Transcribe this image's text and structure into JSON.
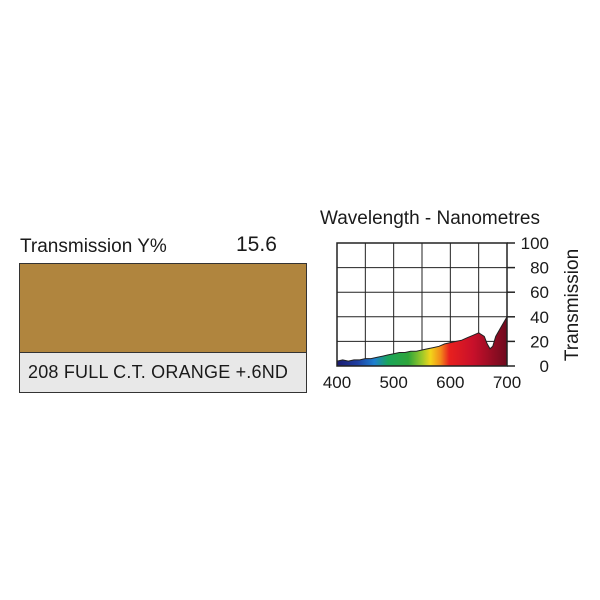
{
  "filter": {
    "transmission_label": "Transmission Y%",
    "transmission_value": "15.6",
    "swatch_color": "#b0853e",
    "name": "208 FULL C.T. ORANGE +.6ND"
  },
  "chart_data": {
    "type": "area",
    "title": "Wavelength - Nanometres",
    "ylabel": "Transmission",
    "xlim": [
      400,
      700
    ],
    "ylim": [
      0,
      100
    ],
    "x_ticks": [
      400,
      500,
      600,
      700
    ],
    "y_ticks": [
      0,
      20,
      40,
      60,
      80,
      100
    ],
    "grid": true,
    "fill": "visible-spectrum gradient",
    "x": [
      400,
      410,
      420,
      430,
      440,
      450,
      460,
      470,
      480,
      490,
      500,
      510,
      520,
      530,
      540,
      550,
      560,
      570,
      580,
      590,
      600,
      610,
      620,
      630,
      640,
      650,
      660,
      665,
      670,
      675,
      680,
      690,
      700
    ],
    "y": [
      4,
      5,
      4,
      5,
      5,
      6,
      6,
      7,
      8,
      9,
      10,
      11,
      11,
      12,
      12,
      13,
      14,
      15,
      16,
      18,
      19,
      20,
      21,
      23,
      25,
      27,
      24,
      18,
      14,
      16,
      24,
      32,
      40
    ]
  }
}
